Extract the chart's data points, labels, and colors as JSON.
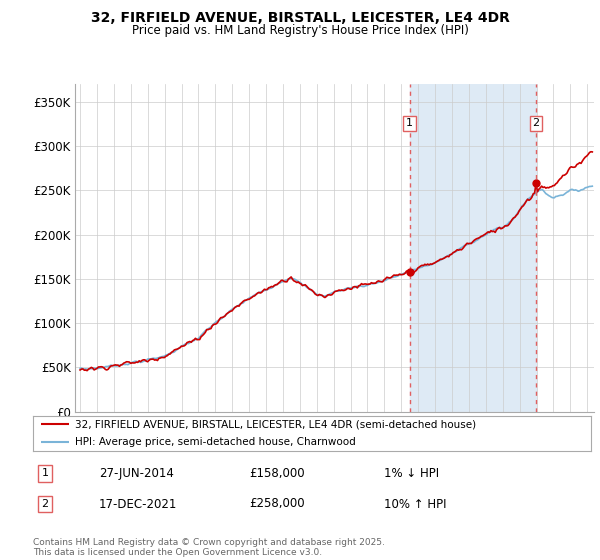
{
  "title1": "32, FIRFIELD AVENUE, BIRSTALL, LEICESTER, LE4 4DR",
  "title2": "Price paid vs. HM Land Registry's House Price Index (HPI)",
  "ylabel_ticks": [
    "£0",
    "£50K",
    "£100K",
    "£150K",
    "£200K",
    "£250K",
    "£300K",
    "£350K"
  ],
  "ytick_vals": [
    0,
    50000,
    100000,
    150000,
    200000,
    250000,
    300000,
    350000
  ],
  "ylim": [
    0,
    370000
  ],
  "xlim_start": 1994.7,
  "xlim_end": 2025.4,
  "xticks": [
    1995,
    1996,
    1997,
    1998,
    1999,
    2000,
    2001,
    2002,
    2003,
    2004,
    2005,
    2006,
    2007,
    2008,
    2009,
    2010,
    2011,
    2012,
    2013,
    2014,
    2015,
    2016,
    2017,
    2018,
    2019,
    2020,
    2021,
    2022,
    2023,
    2024,
    2025
  ],
  "hpi_color": "#7ab4d8",
  "price_color": "#cc0000",
  "marker_color": "#cc0000",
  "vline_color": "#e06060",
  "shade_color": "#deeaf5",
  "purchase1_x": 2014.5,
  "purchase1_y": 158000,
  "purchase1_label": "1",
  "purchase2_x": 2021.97,
  "purchase2_y": 258000,
  "purchase2_label": "2",
  "legend_line1": "32, FIRFIELD AVENUE, BIRSTALL, LEICESTER, LE4 4DR (semi-detached house)",
  "legend_line2": "HPI: Average price, semi-detached house, Charnwood",
  "info1_num": "1",
  "info1_date": "27-JUN-2014",
  "info1_price": "£158,000",
  "info1_hpi": "1% ↓ HPI",
  "info2_num": "2",
  "info2_date": "17-DEC-2021",
  "info2_price": "£258,000",
  "info2_hpi": "10% ↑ HPI",
  "footer": "Contains HM Land Registry data © Crown copyright and database right 2025.\nThis data is licensed under the Open Government Licence v3.0.",
  "background_color": "#ffffff",
  "grid_color": "#cccccc"
}
